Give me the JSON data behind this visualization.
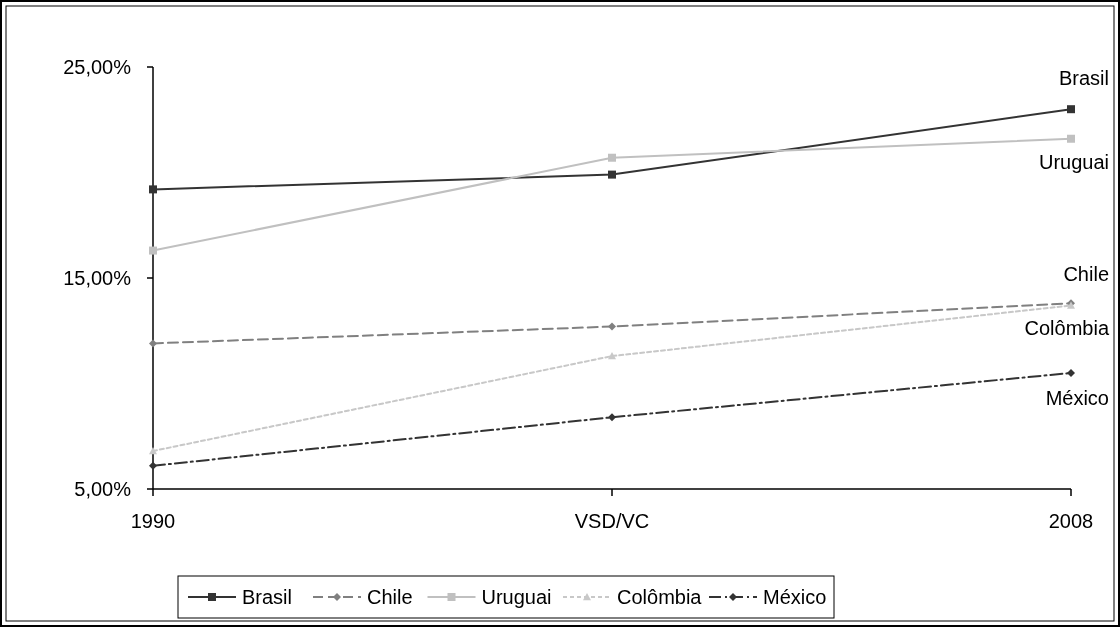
{
  "chart_data": {
    "type": "line",
    "categories": [
      "1990",
      "VSD/VC",
      "2008"
    ],
    "ylim": [
      5,
      25
    ],
    "yticks": [
      {
        "value": 5,
        "label": "5,00%"
      },
      {
        "value": 15,
        "label": "15,00%"
      },
      {
        "value": 25,
        "label": "25,00%"
      }
    ],
    "grid": false,
    "legend": "bottom",
    "series": [
      {
        "name": "Brasil",
        "color": "#333333",
        "values": [
          19.2,
          19.9,
          23.0
        ],
        "marker": "square",
        "line_style": "solid"
      },
      {
        "name": "Chile",
        "color": "#808080",
        "values": [
          11.9,
          12.7,
          13.8
        ],
        "marker": "diamond",
        "line_style": "dashed"
      },
      {
        "name": "Uruguai",
        "color": "#c0c0c0",
        "values": [
          16.3,
          20.7,
          21.6
        ],
        "marker": "square",
        "line_style": "solid"
      },
      {
        "name": "Colômbia",
        "color": "#c8c8c8",
        "values": [
          6.8,
          11.3,
          13.7
        ],
        "marker": "triangle",
        "line_style": "dotted"
      },
      {
        "name": "México",
        "color": "#333333",
        "values": [
          6.1,
          8.4,
          10.5
        ],
        "marker": "diamond",
        "line_style": "dashdot"
      }
    ]
  }
}
